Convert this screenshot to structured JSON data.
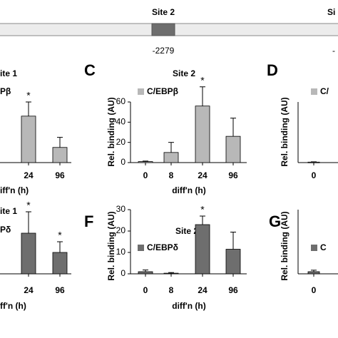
{
  "diagram": {
    "site_label": "Site 2",
    "site_position": "-2279",
    "next_site_label": "Si",
    "next_site_position": "-"
  },
  "chart_data": [
    {
      "type": "bar",
      "title": "ite 1",
      "xlabel": "iff'n (h)",
      "categories": [
        "24",
        "96"
      ],
      "series": [
        {
          "name": "Pβ",
          "color": "#b8b8b8",
          "values": [
            46,
            15
          ],
          "errors": [
            14,
            10
          ]
        }
      ],
      "annotations": [
        {
          "category": "24",
          "text": "*"
        }
      ],
      "ylim": [
        0,
        60
      ]
    },
    {
      "type": "bar",
      "panel": "C",
      "title": "Site 2",
      "ylabel": "Rel. binding (AU)",
      "xlabel": "diff'n (h)",
      "categories": [
        "0",
        "8",
        "24",
        "96"
      ],
      "series": [
        {
          "name": "C/EBPβ",
          "color": "#b8b8b8",
          "values": [
            1,
            10,
            56,
            26
          ],
          "errors": [
            0.5,
            10,
            19,
            18
          ]
        }
      ],
      "annotations": [
        {
          "category": "24",
          "text": "*"
        }
      ],
      "ylim": [
        0,
        60
      ],
      "yticks": [
        0,
        20,
        40,
        60
      ]
    },
    {
      "type": "bar",
      "panel": "D",
      "ylabel": "Rel. binding (AU)",
      "categories": [
        "0"
      ],
      "series": [
        {
          "name": "C/",
          "color": "#b8b8b8",
          "values": [
            0.5
          ],
          "errors": [
            0.3
          ]
        }
      ],
      "ylim": [
        0,
        60
      ]
    },
    {
      "type": "bar",
      "title": "ite 1",
      "xlabel": "ff'n (h)",
      "categories": [
        "24",
        "96"
      ],
      "series": [
        {
          "name": "Pδ",
          "color": "#6e6e6e",
          "values": [
            19,
            10
          ],
          "errors": [
            10,
            5
          ]
        }
      ],
      "annotations": [
        {
          "category": "24",
          "text": "*"
        },
        {
          "category": "96",
          "text": "*"
        }
      ],
      "ylim": [
        0,
        30
      ]
    },
    {
      "type": "bar",
      "panel": "F",
      "title": "Site 2",
      "ylabel": "Rel. binding (AU)",
      "xlabel": "diff'n (h)",
      "categories": [
        "0",
        "8",
        "24",
        "96"
      ],
      "series": [
        {
          "name": "C/EBPδ",
          "color": "#6e6e6e",
          "values": [
            1,
            0.3,
            23,
            11.5
          ],
          "errors": [
            0.8,
            0.3,
            4,
            8
          ]
        }
      ],
      "annotations": [
        {
          "category": "24",
          "text": "*"
        }
      ],
      "ylim": [
        0,
        30
      ],
      "yticks": [
        0,
        10,
        20,
        30
      ]
    },
    {
      "type": "bar",
      "panel": "G",
      "ylabel": "Rel. binding (AU)",
      "categories": [
        "0"
      ],
      "series": [
        {
          "name": "C",
          "color": "#6e6e6e",
          "values": [
            1
          ],
          "errors": [
            0.7
          ]
        }
      ],
      "ylim": [
        0,
        30
      ]
    }
  ]
}
